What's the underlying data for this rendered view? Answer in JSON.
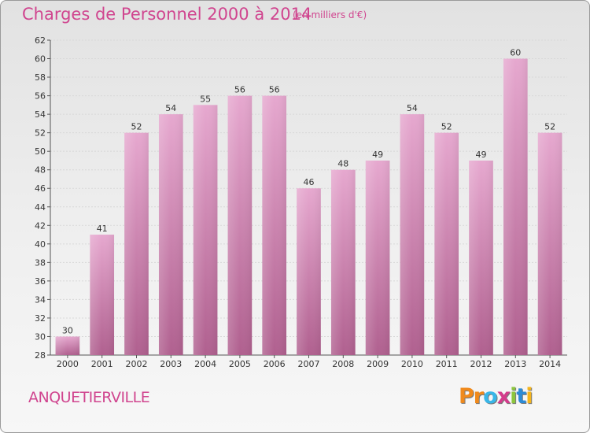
{
  "header": {
    "title": "Charges de Personnel 2000 à 2014",
    "subtitle": "(en milliers d'€)"
  },
  "commune": "ANQUETIERVILLE",
  "logo": {
    "letters": [
      "P",
      "r",
      "o",
      "x",
      "i",
      "t",
      "i"
    ],
    "colors": [
      "#f08a1c",
      "#f08a1c",
      "#38b6e8",
      "#d43c8c",
      "#8cc63e",
      "#2c8bd6",
      "#f5b51b"
    ]
  },
  "colors": {
    "bar_top": "#e6a8cf",
    "bar_bottom": "#b0608f",
    "text_accent": "#d0458f",
    "grid": "#d8d8d8"
  },
  "chart_data": {
    "type": "bar",
    "title": "Charges de Personnel 2000 à 2014",
    "subtitle": "(en milliers d'€)",
    "categories": [
      "2000",
      "2001",
      "2002",
      "2003",
      "2004",
      "2005",
      "2006",
      "2007",
      "2008",
      "2009",
      "2010",
      "2011",
      "2012",
      "2013",
      "2014"
    ],
    "values": [
      30,
      41,
      52,
      54,
      55,
      56,
      56,
      46,
      48,
      49,
      54,
      52,
      49,
      60,
      52
    ],
    "ylim": [
      28,
      62
    ],
    "yticks": [
      28,
      30,
      32,
      34,
      36,
      38,
      40,
      42,
      44,
      46,
      48,
      50,
      52,
      54,
      56,
      58,
      60,
      62
    ],
    "grid": true,
    "xlabel": "",
    "ylabel": ""
  }
}
